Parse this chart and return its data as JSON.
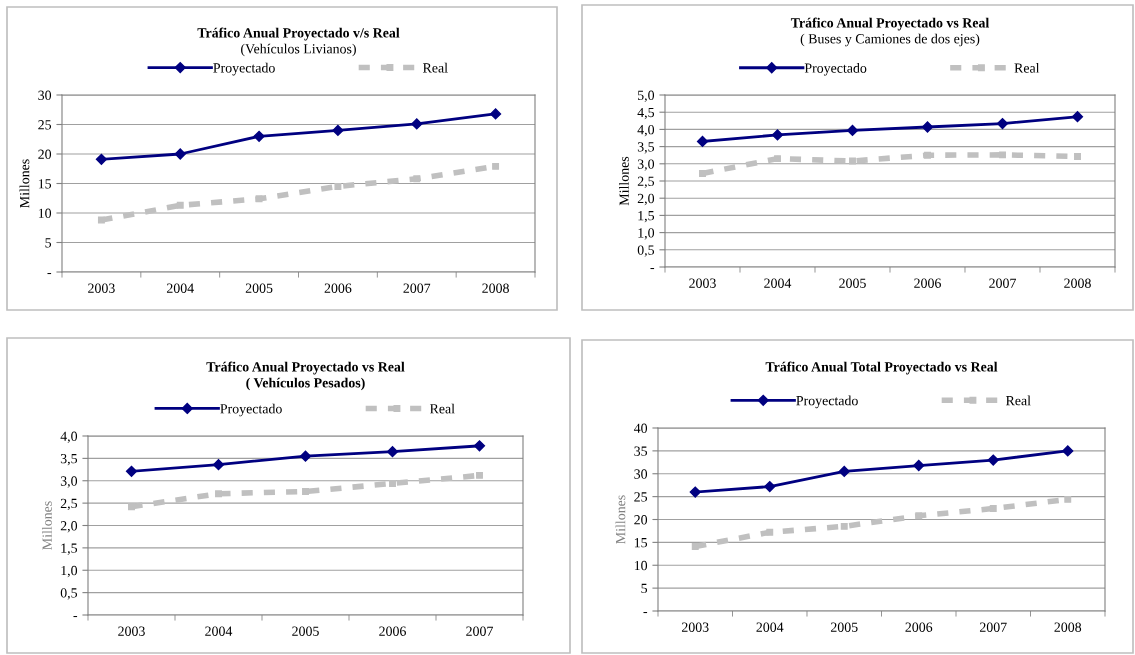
{
  "chart_data": [
    {
      "type": "line",
      "title": "Tráfico Anual Proyectado v/s Real",
      "subtitle": "(Vehículos Livianos)",
      "ylabel": "Millones",
      "categories": [
        "2003",
        "2004",
        "2005",
        "2006",
        "2007",
        "2008"
      ],
      "series": [
        {
          "name": "Proyectado",
          "color": "#000080",
          "marker": "diamond",
          "line_style": "solid",
          "values": [
            19.1,
            20.0,
            23.0,
            24.0,
            25.1,
            26.8
          ]
        },
        {
          "name": "Real",
          "color": "#c0c0c0",
          "marker": "square",
          "line_style": "dashed",
          "values": [
            8.8,
            11.3,
            12.4,
            14.5,
            15.8,
            17.9
          ]
        }
      ],
      "ylim": [
        0,
        30
      ],
      "yticks": [
        {
          "value": 0,
          "label": "-"
        },
        5,
        10,
        15,
        20,
        25,
        30
      ],
      "grid": "y",
      "legend": "top"
    },
    {
      "type": "line",
      "title": "Tráfico Anual Proyectado vs Real",
      "subtitle": "( Buses y Camiones de dos ejes)",
      "ylabel": "Millones",
      "categories": [
        "2003",
        "2004",
        "2005",
        "2006",
        "2007",
        "2008"
      ],
      "series": [
        {
          "name": "Proyectado",
          "color": "#000080",
          "marker": "diamond",
          "line_style": "solid",
          "values": [
            3.65,
            3.84,
            3.97,
            4.07,
            4.17,
            4.37
          ]
        },
        {
          "name": "Real",
          "color": "#c0c0c0",
          "marker": "square",
          "line_style": "dashed",
          "values": [
            2.72,
            3.15,
            3.08,
            3.25,
            3.26,
            3.21
          ]
        }
      ],
      "ylim": [
        0,
        5
      ],
      "yticks": [
        {
          "value": 0,
          "label": "-"
        },
        {
          "value": 0.5,
          "label": "0,5"
        },
        {
          "value": 1,
          "label": "1,0"
        },
        {
          "value": 1.5,
          "label": "1,5"
        },
        {
          "value": 2,
          "label": "2,0"
        },
        {
          "value": 2.5,
          "label": "2,5"
        },
        {
          "value": 3,
          "label": "3,0"
        },
        {
          "value": 3.5,
          "label": "3,5"
        },
        {
          "value": 4,
          "label": "4,0"
        },
        {
          "value": 4.5,
          "label": "4,5"
        },
        {
          "value": 5,
          "label": "5,0"
        }
      ],
      "grid": "y",
      "legend": "top"
    },
    {
      "type": "line",
      "title": "Tráfico Anual Proyectado vs Real",
      "subtitle": "( Vehículos Pesados)",
      "ylabel": "Millones",
      "categories": [
        "2003",
        "2004",
        "2005",
        "2006",
        "2007"
      ],
      "series": [
        {
          "name": "Proyectado",
          "color": "#000080",
          "marker": "diamond",
          "line_style": "solid",
          "values": [
            3.21,
            3.36,
            3.55,
            3.65,
            3.78
          ]
        },
        {
          "name": "Real",
          "color": "#c0c0c0",
          "marker": "square",
          "line_style": "dashed",
          "values": [
            2.42,
            2.71,
            2.76,
            2.94,
            3.12
          ]
        }
      ],
      "ylim": [
        0,
        4
      ],
      "yticks": [
        {
          "value": 0,
          "label": "-"
        },
        {
          "value": 0.5,
          "label": "0,5"
        },
        {
          "value": 1,
          "label": "1,0"
        },
        {
          "value": 1.5,
          "label": "1,5"
        },
        {
          "value": 2,
          "label": "2,0"
        },
        {
          "value": 2.5,
          "label": "2,5"
        },
        {
          "value": 3,
          "label": "3,0"
        },
        {
          "value": 3.5,
          "label": "3,5"
        },
        {
          "value": 4,
          "label": "4,0"
        }
      ],
      "grid": "y",
      "legend": "top"
    },
    {
      "type": "line",
      "title": "Tráfico Anual Total Proyectado vs Real",
      "ylabel": "Millones",
      "categories": [
        "2003",
        "2004",
        "2005",
        "2006",
        "2007",
        "2008"
      ],
      "series": [
        {
          "name": "Proyectado",
          "color": "#000080",
          "marker": "diamond",
          "line_style": "solid",
          "values": [
            26.0,
            27.2,
            30.5,
            31.8,
            33.0,
            35.0
          ]
        },
        {
          "name": "Real",
          "color": "#c0c0c0",
          "marker": "square",
          "line_style": "dashed",
          "values": [
            14.1,
            17.2,
            18.5,
            20.8,
            22.4,
            24.4
          ]
        }
      ],
      "ylim": [
        0,
        40
      ],
      "yticks": [
        {
          "value": 0,
          "label": "-"
        },
        5,
        10,
        15,
        20,
        25,
        30,
        35,
        40
      ],
      "grid": "y",
      "legend": "top"
    }
  ]
}
